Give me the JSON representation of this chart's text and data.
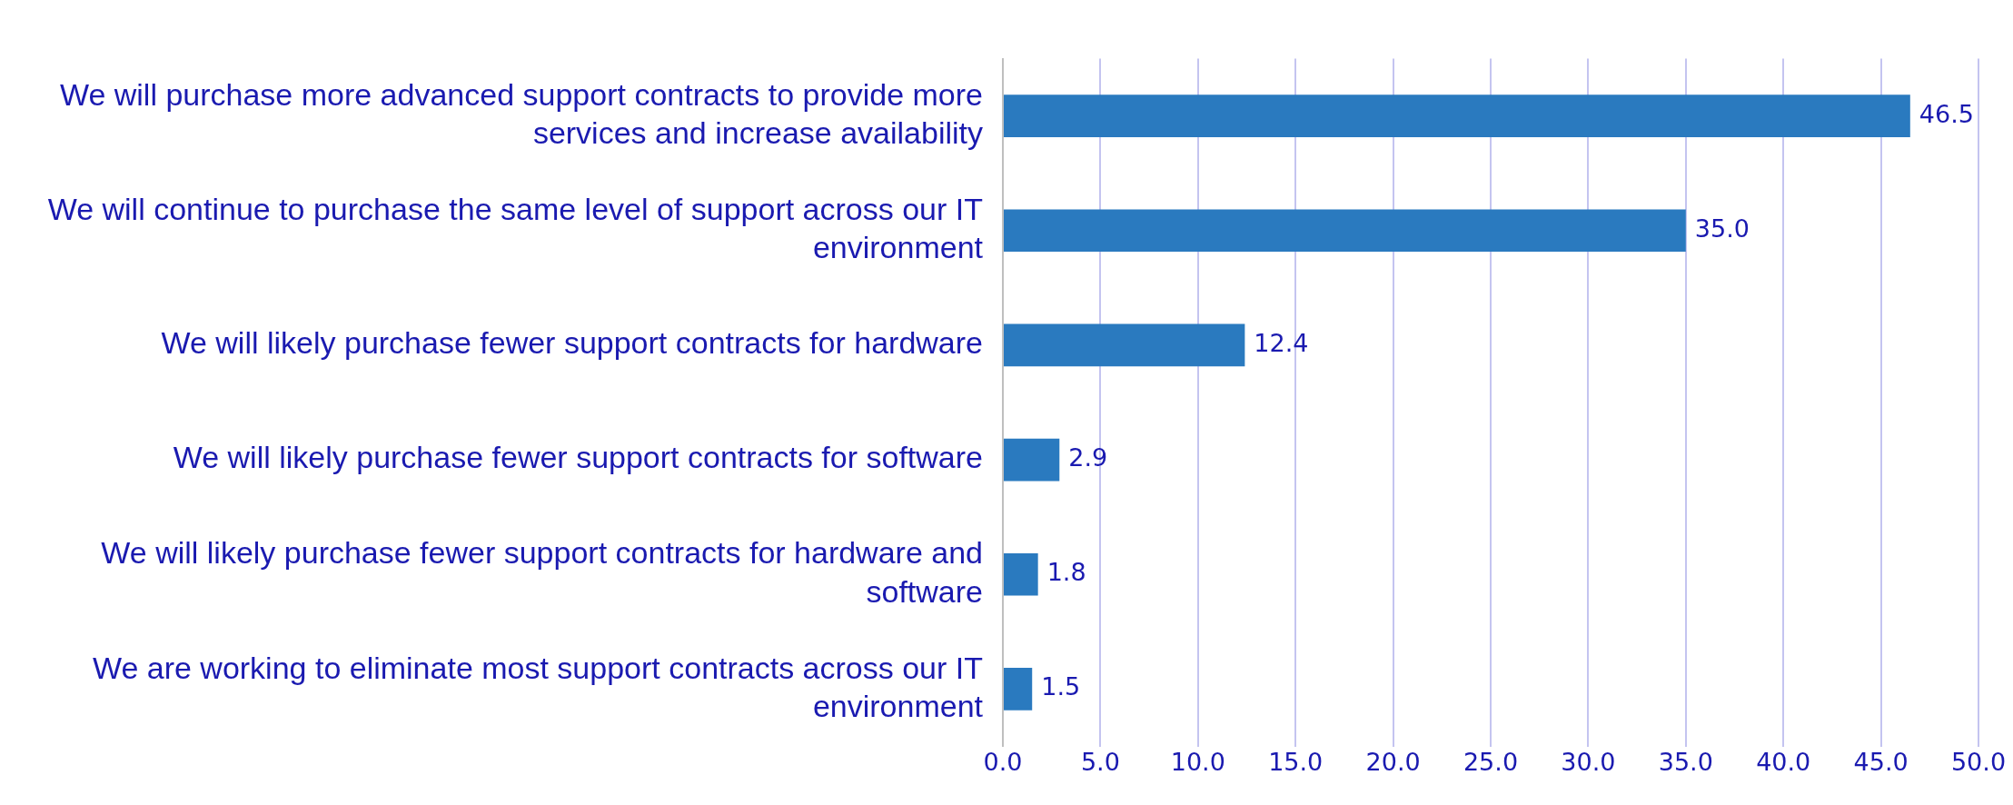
{
  "chart_data": {
    "type": "bar",
    "orientation": "horizontal",
    "categories": [
      "We will purchase more advanced support contracts to provide more services and increase availability",
      "We will continue to purchase the same level of support across our IT environment",
      "We will likely purchase fewer support contracts for hardware",
      "We will likely purchase fewer support contracts for software",
      "We will likely purchase fewer support contracts for hardware and software",
      "We are working to eliminate most support contracts across our IT environment"
    ],
    "values": [
      46.5,
      35.0,
      12.4,
      2.9,
      1.8,
      1.5
    ],
    "value_labels": [
      "46.5",
      "35.0",
      "12.4",
      "2.9",
      "1.8",
      "1.5"
    ],
    "color": "#2a7abf",
    "xlim": [
      0,
      50
    ],
    "xticks": [
      {
        "value": 0,
        "label": "0.0"
      },
      {
        "value": 5,
        "label": "5.0"
      },
      {
        "value": 10,
        "label": "10.0"
      },
      {
        "value": 15,
        "label": "15.0"
      },
      {
        "value": 20,
        "label": "20.0"
      },
      {
        "value": 25,
        "label": "25.0"
      },
      {
        "value": 30,
        "label": "30.0"
      },
      {
        "value": 35,
        "label": "35.0"
      },
      {
        "value": 40,
        "label": "40.0"
      },
      {
        "value": 45,
        "label": "45.0"
      },
      {
        "value": 50,
        "label": "50.0"
      }
    ],
    "grid": "x",
    "legend": false
  }
}
